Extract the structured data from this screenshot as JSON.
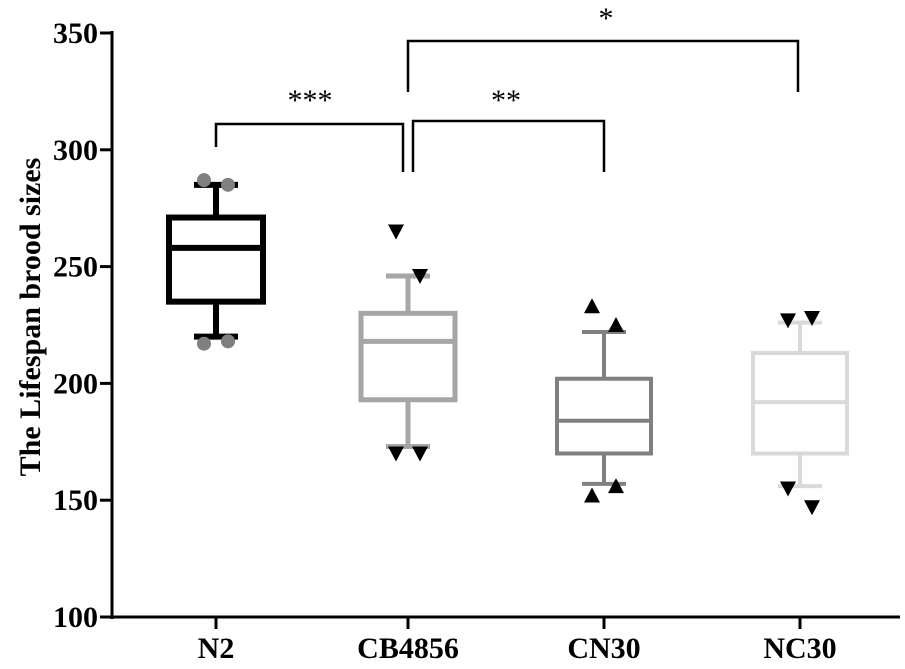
{
  "chart_data": {
    "type": "box",
    "title": "",
    "xlabel": "",
    "ylabel": "The Lifespan brood sizes",
    "ylim": [
      100,
      350
    ],
    "yticks": [
      100,
      150,
      200,
      250,
      300,
      350
    ],
    "grid": false,
    "categories": [
      "N2",
      "CB4856",
      "CN30",
      "NC30"
    ],
    "series": [
      {
        "category": "N2",
        "color": "#000000",
        "marker": "circle",
        "marker_color": "#808080",
        "whisker_low": 220,
        "q1": 235,
        "median": 258,
        "q3": 271,
        "whisker_high": 285,
        "outliers": [
          287,
          285,
          217,
          218
        ]
      },
      {
        "category": "CB4856",
        "color": "#a6a6a6",
        "marker": "triangle-down",
        "marker_color": "#000000",
        "whisker_low": 173,
        "q1": 193,
        "median": 218,
        "q3": 230,
        "whisker_high": 246,
        "outliers": [
          265,
          246,
          170,
          170
        ]
      },
      {
        "category": "CN30",
        "color": "#808080",
        "marker": "triangle-up",
        "marker_color": "#000000",
        "whisker_low": 157,
        "q1": 170,
        "median": 184,
        "q3": 202,
        "whisker_high": 222,
        "outliers": [
          233,
          225,
          152,
          156
        ]
      },
      {
        "category": "NC30",
        "color": "#d9d9d9",
        "marker": "triangle-down",
        "marker_color": "#000000",
        "whisker_low": 156,
        "q1": 170,
        "median": 192,
        "q3": 213,
        "whisker_high": 226,
        "outliers": [
          227,
          228,
          155,
          147
        ]
      }
    ],
    "significance": [
      {
        "from": "N2",
        "to": "CB4856",
        "label": "***",
        "y": 305
      },
      {
        "from": "CB4856",
        "to": "CN30",
        "label": "**",
        "y": 305
      },
      {
        "from": "CB4856",
        "to": "NC30",
        "label": "*",
        "y": 346
      }
    ]
  }
}
